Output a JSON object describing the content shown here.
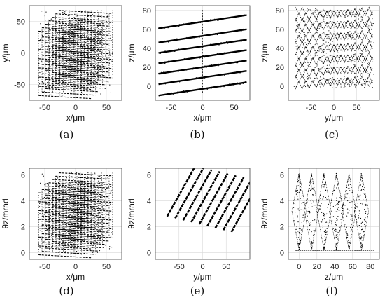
{
  "figure": {
    "panels": [
      {
        "caption": "(a)",
        "chart_data": {
          "type": "scatter",
          "style": "3d-cube",
          "xlabel": "x/μm",
          "ylabel": "y/μm",
          "xlim": [
            -75,
            75
          ],
          "ylim": [
            -75,
            75
          ],
          "xticks": [
            -50,
            0,
            50
          ],
          "yticks": [
            -50,
            0,
            50
          ],
          "grid": true
        }
      },
      {
        "caption": "(b)",
        "chart_data": {
          "type": "scatter",
          "style": "diagonal-stack",
          "xlabel": "x/μm",
          "ylabel": "z/μm",
          "xlim": [
            -75,
            75
          ],
          "ylim": [
            -15,
            85
          ],
          "xticks": [
            -50,
            0,
            50
          ],
          "yticks": [
            0,
            20,
            40,
            60,
            80
          ],
          "series_x": [
            -70,
            70
          ],
          "series_y0": [
            -10,
            2,
            13,
            24,
            35,
            46,
            61
          ],
          "series_slope": 0.1,
          "grid": true
        }
      },
      {
        "caption": "(c)",
        "chart_data": {
          "type": "scatter",
          "style": "layered-zigzag",
          "xlabel": "y/μm",
          "ylabel": "z/μm",
          "xlim": [
            -100,
            100
          ],
          "ylim": [
            -15,
            85
          ],
          "xticks": [
            -50,
            0,
            50
          ],
          "yticks": [
            0,
            20,
            40,
            60,
            80
          ],
          "grid": true
        }
      },
      {
        "caption": "(d)",
        "chart_data": {
          "type": "scatter",
          "style": "3d-cube",
          "xlabel": "x/μm",
          "ylabel": "θz/mrad",
          "xlim": [
            -75,
            75
          ],
          "ylim": [
            -0.5,
            6.5
          ],
          "xticks": [
            -50,
            0,
            50
          ],
          "yticks": [
            0,
            2,
            4,
            6
          ],
          "grid": true
        }
      },
      {
        "caption": "(e)",
        "chart_data": {
          "type": "scatter",
          "style": "diagonal-stack",
          "xlabel": "y/μm",
          "ylabel": "θz/mrad",
          "xlim": [
            -100,
            100
          ],
          "ylim": [
            -0.5,
            6.5
          ],
          "xticks": [
            -50,
            0,
            50
          ],
          "yticks": [
            0,
            2,
            4,
            6
          ],
          "grid": true
        }
      },
      {
        "caption": "(f)",
        "chart_data": {
          "type": "scatter",
          "style": "diamond-lobes",
          "xlabel": "z/μm",
          "ylabel": "θz/mrad",
          "xlim": [
            -12,
            90
          ],
          "ylim": [
            -0.5,
            6.5
          ],
          "xticks": [
            0,
            20,
            40,
            60,
            80
          ],
          "yticks": [
            0,
            2,
            4,
            6
          ],
          "lobe_centers": [
            0,
            14,
            28,
            42,
            56,
            70
          ],
          "grid": true
        }
      }
    ]
  }
}
